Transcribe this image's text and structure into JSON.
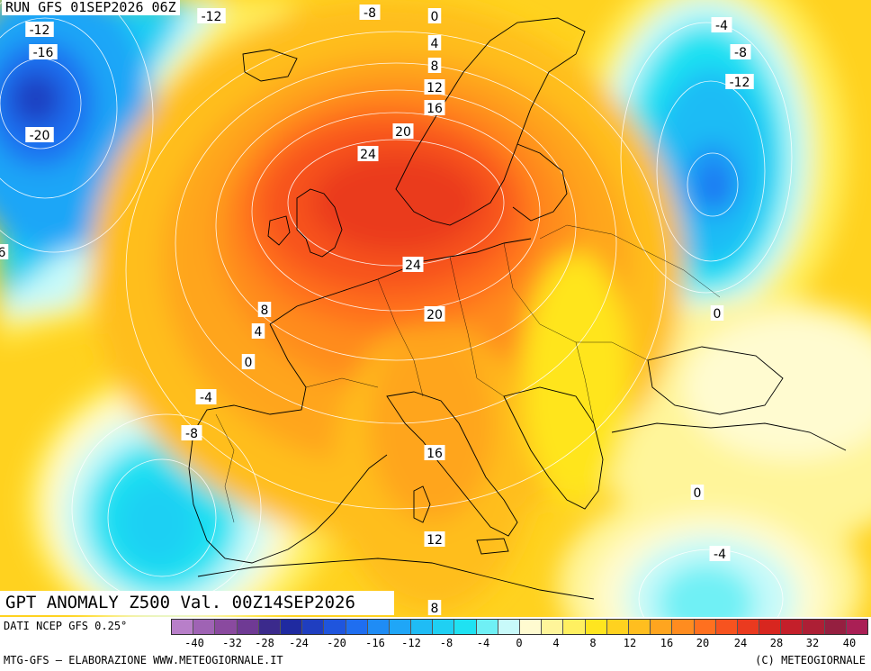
{
  "run_label": "RUN GFS 01SEP2026 06Z",
  "title": "GPT ANOMALY Z500 Val. 00Z14SEP2026",
  "footer": {
    "data_source": "DATI NCEP GFS 0.25°",
    "credit_left": "MTG-GFS — ELABORAZIONE WWW.METEOGIORNALE.IT",
    "credit_right": "(C) METEOGIORNALE"
  },
  "colorbar": {
    "colors": [
      "#b87fc9",
      "#9f63b4",
      "#8a4a9f",
      "#6f3a94",
      "#3b2a8c",
      "#1f2aa0",
      "#1f3ec0",
      "#1f55dd",
      "#1f6ef0",
      "#1f8cf5",
      "#1fa6f7",
      "#1fbcf5",
      "#1fd0f3",
      "#1fe2f2",
      "#6ff0f5",
      "#c8fafa",
      "#fffbd0",
      "#fff59a",
      "#fff060",
      "#ffe51f",
      "#ffd21f",
      "#ffbe1f",
      "#ffa51f",
      "#ff8c1f",
      "#ff701f",
      "#f7531f",
      "#ea3a1f",
      "#d8261f",
      "#c41f2a",
      "#ad1f35",
      "#951f40",
      "#aa1f55"
    ],
    "ticks": [
      "-40",
      "-32",
      "-28",
      "-24",
      "-20",
      "-16",
      "-12",
      "-8",
      "-4",
      "0",
      "4",
      "8",
      "12",
      "16",
      "20",
      "24",
      "28",
      "32",
      "40"
    ]
  },
  "contour_labels": [
    "-12",
    "-8",
    "0",
    "-4",
    "-12",
    "-16",
    "4",
    "-8",
    "8",
    "-12",
    "12",
    "16",
    "-20",
    "20",
    "24",
    "6",
    "24",
    "20",
    "8",
    "0",
    "4",
    "0",
    "-4",
    "-8",
    "16",
    "0",
    "-4",
    "12",
    "8"
  ]
}
